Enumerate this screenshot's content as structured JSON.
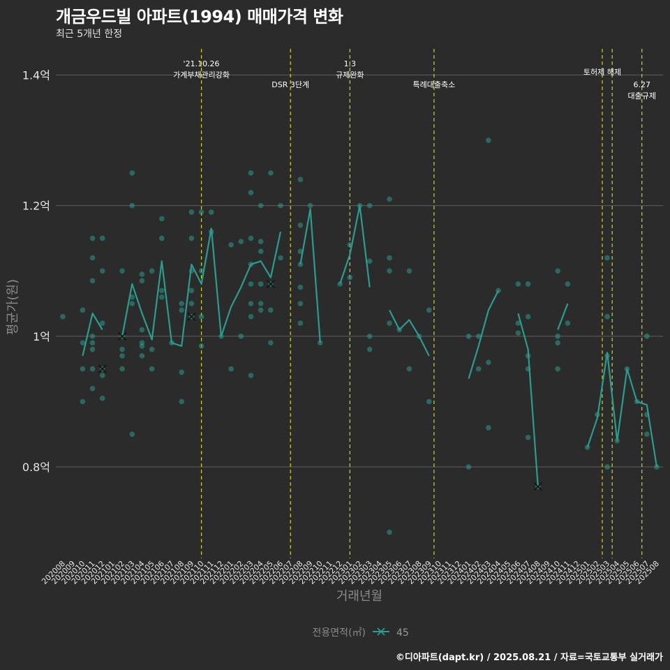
{
  "chart_data": {
    "type": "line",
    "title": "개금우드빌 아파트(1994) 매매가격 변화",
    "subtitle": "최근 5개년 한정",
    "xlabel": "거래년월",
    "ylabel": "평균가(원)",
    "caption": "©디아파트(dapt.kr) / 2025.08.21 / 자료=국토교통부 실거래가",
    "legend_title": "전용면적(㎡)",
    "legend_item": "45",
    "legend_position": "bottom",
    "ylim": [
      0.66,
      1.44
    ],
    "y_ticks": [
      0.8,
      1.0,
      1.2,
      1.4
    ],
    "y_tick_labels": [
      "0.8억",
      "1억",
      "1.2억",
      "1.4억"
    ],
    "categories": [
      "202008",
      "202009",
      "202010",
      "202011",
      "202012",
      "202101",
      "202102",
      "202103",
      "202104",
      "202105",
      "202106",
      "202107",
      "202108",
      "202109",
      "202110",
      "202111",
      "202112",
      "202201",
      "202202",
      "202203",
      "202204",
      "202205",
      "202206",
      "202207",
      "202208",
      "202209",
      "202210",
      "202211",
      "202212",
      "202301",
      "202302",
      "202303",
      "202304",
      "202305",
      "202306",
      "202307",
      "202308",
      "202309",
      "202310",
      "202311",
      "202312",
      "202401",
      "202402",
      "202403",
      "202404",
      "202405",
      "202406",
      "202407",
      "202408",
      "202409",
      "202410",
      "202411",
      "202412",
      "202501",
      "202502",
      "202503",
      "202504",
      "202505",
      "202506",
      "202507",
      "202508"
    ],
    "events": [
      {
        "index": 14,
        "lines": [
          "'21.10.26",
          "가계부채관리강화"
        ],
        "level": 0
      },
      {
        "index": 23,
        "lines": [
          "DSR 3단계"
        ],
        "level": 1
      },
      {
        "index": 29,
        "lines": [
          "1.3",
          "규제완화"
        ],
        "level": 0
      },
      {
        "index": 37.5,
        "lines": [
          "특례대출축소"
        ],
        "level": 1
      },
      {
        "index": 54.5,
        "lines": [
          "토허제 해제"
        ],
        "level": 0.4
      },
      {
        "index": 55.5,
        "lines": [],
        "level": 0
      },
      {
        "index": 58.5,
        "lines": [
          "6.27",
          "대출규제"
        ],
        "level": 1
      }
    ],
    "series": [
      {
        "name": "45",
        "color": "#2a9d8f",
        "line_segments": [
          [
            [
              2,
              0.97
            ],
            [
              3,
              1.035
            ],
            [
              4,
              1.01
            ]
          ],
          [
            [
              6,
              1.0
            ],
            [
              7,
              1.08
            ],
            [
              8,
              1.035
            ],
            [
              9,
              0.995
            ],
            [
              10,
              1.115
            ],
            [
              11,
              0.99
            ],
            [
              12,
              0.985
            ],
            [
              13,
              1.11
            ],
            [
              14,
              1.08
            ],
            [
              15,
              1.165
            ],
            [
              16,
              1.0
            ],
            [
              17,
              1.045
            ],
            [
              18,
              1.075
            ],
            [
              19,
              1.11
            ],
            [
              20,
              1.115
            ],
            [
              21,
              1.09
            ],
            [
              22,
              1.16
            ]
          ],
          [
            [
              24,
              1.11
            ],
            [
              25,
              1.195
            ],
            [
              26,
              0.99
            ]
          ],
          [
            [
              28,
              1.08
            ],
            [
              29,
              1.125
            ],
            [
              30,
              1.2
            ],
            [
              31,
              1.075
            ]
          ],
          [
            [
              33,
              1.04
            ],
            [
              34,
              1.01
            ],
            [
              35,
              1.025
            ],
            [
              36,
              1.0
            ],
            [
              37,
              0.97
            ]
          ],
          [
            [
              41,
              0.935
            ],
            [
              42,
              0.985
            ],
            [
              43,
              1.04
            ],
            [
              44,
              1.07
            ]
          ],
          [
            [
              46,
              1.035
            ],
            [
              47,
              0.98
            ],
            [
              48,
              0.77
            ]
          ],
          [
            [
              50,
              1.01
            ],
            [
              51,
              1.05
            ]
          ],
          [
            [
              53,
              0.83
            ],
            [
              54,
              0.875
            ],
            [
              55,
              0.975
            ],
            [
              56,
              0.84
            ],
            [
              57,
              0.95
            ],
            [
              58,
              0.9
            ],
            [
              59,
              0.895
            ],
            [
              60,
              0.8
            ]
          ]
        ],
        "points": [
          [
            0,
            1.03
          ],
          [
            2,
            0.9
          ],
          [
            2,
            0.95
          ],
          [
            2,
            0.99
          ],
          [
            2,
            1.04
          ],
          [
            3,
            0.92
          ],
          [
            3,
            0.95
          ],
          [
            3,
            0.98
          ],
          [
            3,
            0.99
          ],
          [
            3,
            1.0
          ],
          [
            3,
            1.085
          ],
          [
            3,
            1.12
          ],
          [
            3,
            1.15
          ],
          [
            4,
            0.905
          ],
          [
            4,
            0.94
          ],
          [
            4,
            0.95
          ],
          [
            4,
            1.02
          ],
          [
            4,
            1.1
          ],
          [
            4,
            1.15
          ],
          [
            6,
            0.95
          ],
          [
            6,
            0.97
          ],
          [
            6,
            0.98
          ],
          [
            6,
            1.0
          ],
          [
            6,
            1.1
          ],
          [
            7,
            0.85
          ],
          [
            7,
            1.05
          ],
          [
            7,
            1.06
          ],
          [
            7,
            1.2
          ],
          [
            7,
            1.25
          ],
          [
            8,
            0.97
          ],
          [
            8,
            0.985
          ],
          [
            8,
            0.99
          ],
          [
            8,
            1.01
          ],
          [
            8,
            1.085
          ],
          [
            8,
            1.095
          ],
          [
            9,
            0.95
          ],
          [
            9,
            0.98
          ],
          [
            9,
            1.1
          ],
          [
            10,
            1.06
          ],
          [
            10,
            1.07
          ],
          [
            10,
            1.15
          ],
          [
            10,
            1.18
          ],
          [
            11,
            0.99
          ],
          [
            12,
            0.9
          ],
          [
            12,
            0.945
          ],
          [
            12,
            1.04
          ],
          [
            12,
            1.05
          ],
          [
            13,
            1.03
          ],
          [
            13,
            1.05
          ],
          [
            13,
            1.07
          ],
          [
            13,
            1.1
          ],
          [
            13,
            1.15
          ],
          [
            13,
            1.19
          ],
          [
            14,
            0.985
          ],
          [
            14,
            1.03
          ],
          [
            14,
            1.1
          ],
          [
            14,
            1.19
          ],
          [
            15,
            1.16
          ],
          [
            15,
            1.19
          ],
          [
            16,
            1.0
          ],
          [
            17,
            0.95
          ],
          [
            17,
            1.14
          ],
          [
            18,
            1.0
          ],
          [
            18,
            1.145
          ],
          [
            19,
            0.94
          ],
          [
            19,
            1.03
          ],
          [
            19,
            1.05
          ],
          [
            19,
            1.08
          ],
          [
            19,
            1.11
          ],
          [
            19,
            1.15
          ],
          [
            19,
            1.22
          ],
          [
            19,
            1.25
          ],
          [
            20,
            1.04
          ],
          [
            20,
            1.05
          ],
          [
            20,
            1.08
          ],
          [
            20,
            1.13
          ],
          [
            20,
            1.145
          ],
          [
            20,
            1.2
          ],
          [
            21,
            0.99
          ],
          [
            21,
            1.04
          ],
          [
            21,
            1.08
          ],
          [
            21,
            1.25
          ],
          [
            22,
            1.12
          ],
          [
            22,
            1.2
          ],
          [
            24,
            1.02
          ],
          [
            24,
            1.05
          ],
          [
            24,
            1.075
          ],
          [
            24,
            1.11
          ],
          [
            24,
            1.13
          ],
          [
            24,
            1.17
          ],
          [
            24,
            1.24
          ],
          [
            25,
            1.2
          ],
          [
            26,
            0.99
          ],
          [
            28,
            1.08
          ],
          [
            29,
            1.09
          ],
          [
            29,
            1.14
          ],
          [
            30,
            1.2
          ],
          [
            31,
            0.98
          ],
          [
            31,
            1.0
          ],
          [
            31,
            1.115
          ],
          [
            31,
            1.2
          ],
          [
            33,
            0.7
          ],
          [
            33,
            1.02
          ],
          [
            33,
            1.1
          ],
          [
            33,
            1.12
          ],
          [
            33,
            1.21
          ],
          [
            34,
            1.01
          ],
          [
            35,
            0.95
          ],
          [
            35,
            1.1
          ],
          [
            36,
            1.0
          ],
          [
            37,
            0.9
          ],
          [
            37,
            1.04
          ],
          [
            41,
            0.8
          ],
          [
            41,
            1.0
          ],
          [
            42,
            0.95
          ],
          [
            42,
            1.0
          ],
          [
            43,
            0.86
          ],
          [
            43,
            0.96
          ],
          [
            43,
            1.3
          ],
          [
            44,
            1.07
          ],
          [
            46,
            1.005
          ],
          [
            46,
            1.02
          ],
          [
            46,
            1.08
          ],
          [
            47,
            0.845
          ],
          [
            47,
            0.95
          ],
          [
            47,
            0.97
          ],
          [
            47,
            1.03
          ],
          [
            47,
            1.08
          ],
          [
            48,
            0.77
          ],
          [
            50,
            0.95
          ],
          [
            50,
            0.99
          ],
          [
            50,
            1.0
          ],
          [
            50,
            1.1
          ],
          [
            51,
            1.02
          ],
          [
            51,
            1.08
          ],
          [
            53,
            0.83
          ],
          [
            54,
            0.88
          ],
          [
            55,
            0.8
          ],
          [
            55,
            0.97
          ],
          [
            55,
            1.03
          ],
          [
            55,
            1.12
          ],
          [
            56,
            0.84
          ],
          [
            57,
            0.95
          ],
          [
            58,
            0.9
          ],
          [
            59,
            0.85
          ],
          [
            59,
            0.88
          ],
          [
            59,
            1.0
          ],
          [
            60,
            0.8
          ]
        ],
        "x_markers": [
          [
            4,
            0.95
          ],
          [
            6,
            1.0
          ],
          [
            13,
            1.03
          ],
          [
            21,
            1.08
          ],
          [
            48,
            0.77
          ]
        ]
      }
    ]
  }
}
